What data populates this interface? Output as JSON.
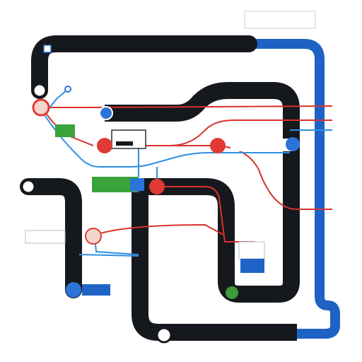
{
  "diagram": {
    "colors": {
      "track_dark": "#15181d",
      "track_blue": "#1d62c4",
      "line_red": "#d8322b",
      "line_blue": "#2f8fe0",
      "node_red": "#e03a34",
      "node_blue": "#2a74d8",
      "node_green": "#3b9a3a",
      "label_green": "#3aa33b",
      "label_blue": "#1f63c7",
      "node_hollow": "#ffffff"
    },
    "texts": {
      "top_left_caption": "",
      "top_right_box": "",
      "blue_corner_label": "",
      "bottom_right_label": "",
      "center_dark_label": "",
      "right_blue_label": "",
      "left_box_label": "",
      "green_box_label": "",
      "green_center_label": "",
      "blue_box_label": "",
      "mini_box_label": ""
    },
    "node_types": [
      "hollow",
      "red",
      "blue",
      "green"
    ]
  }
}
